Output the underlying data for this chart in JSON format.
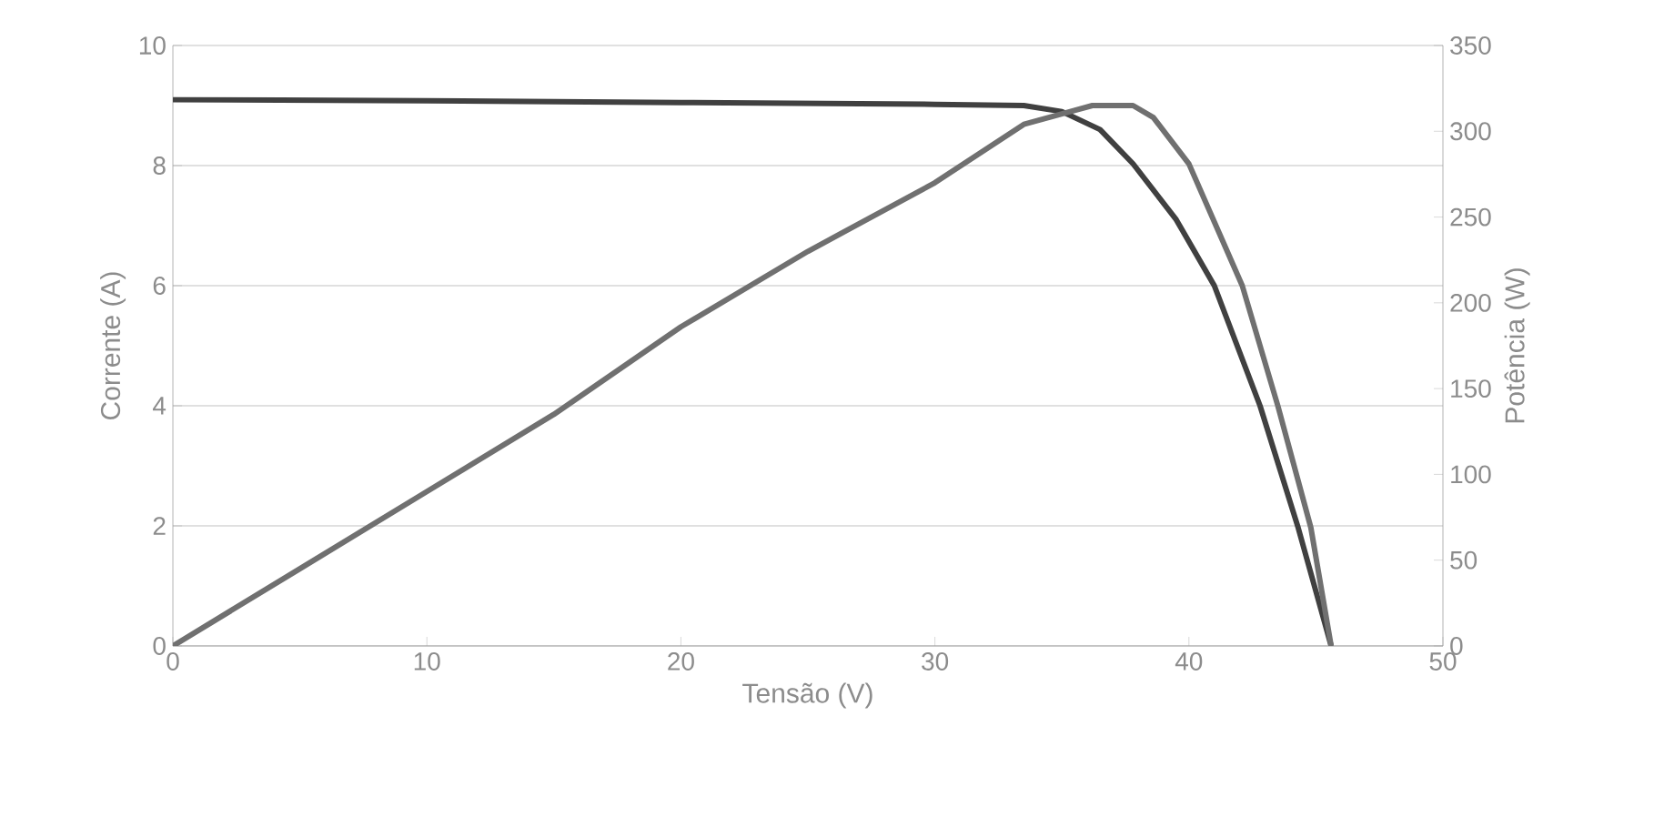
{
  "chart_data": {
    "type": "line",
    "xlabel": "Tensão (V)",
    "ylabel": "Corrente (A)",
    "y2label": "Potência (W)",
    "xlim": [
      0,
      50
    ],
    "xticks": [
      0,
      10,
      20,
      30,
      40,
      50
    ],
    "ylim": [
      0,
      10
    ],
    "yticks": [
      0,
      2,
      4,
      6,
      8,
      10
    ],
    "y2lim": [
      0,
      350
    ],
    "y2ticks": [
      0,
      50,
      100,
      150,
      200,
      250,
      300,
      350
    ],
    "grid": "y",
    "marker": "none",
    "line_style": "solid",
    "series": [
      {
        "color": "#404040",
        "x": [
          0,
          10,
          20,
          30,
          33.5,
          35,
          36.5,
          37.8,
          39.5,
          41,
          42.8,
          44.3,
          45.6
        ],
        "values": [
          9.1,
          9.08,
          9.05,
          9.02,
          9.0,
          8.9,
          8.6,
          8.03,
          7.1,
          6.0,
          4.0,
          1.97,
          0
        ]
      },
      {
        "color": "#707070",
        "axis": "y2",
        "x": [
          0,
          5,
          10,
          15,
          20,
          25,
          30,
          33.5,
          35.2,
          36.2,
          37.8,
          38.6,
          40,
          42.1,
          43.5,
          44.8,
          45.6
        ],
        "values": [
          0,
          45,
          90,
          135,
          186,
          230,
          270,
          304,
          311,
          315,
          315,
          308,
          281,
          210,
          140,
          69,
          0
        ]
      }
    ]
  }
}
